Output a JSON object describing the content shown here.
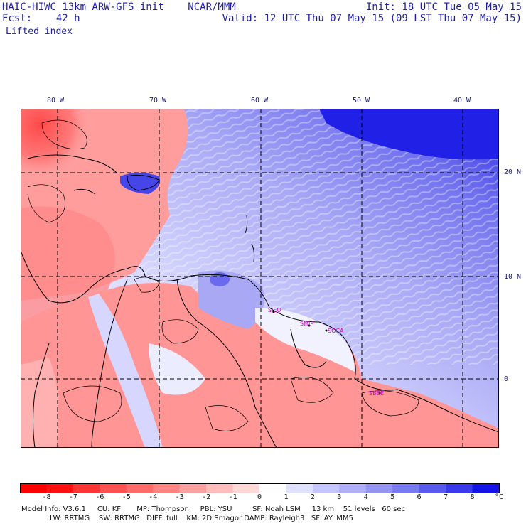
{
  "header": {
    "line1_left": "HAIC-HIWC 13km ARW-GFS init    NCAR/MMM",
    "line1_right": "Init: 18 UTC Tue 05 May 15",
    "line2_left": "Fcst:    42 h",
    "line2_right": "Valid: 12 UTC Thu 07 May 15 (09 LST Thu 07 May 15)",
    "field": "Lifted index"
  },
  "map": {
    "lon_labels": [
      "80 W",
      "70 W",
      "60 W",
      "50 W",
      "40 W"
    ],
    "lat_labels": [
      "20 N",
      "10 N",
      "0"
    ],
    "sites": [
      "SIEU",
      "SMJP",
      "SOCA",
      "SBBE"
    ]
  },
  "colorbar": {
    "ticks": [
      "-8",
      "-7",
      "-6",
      "-5",
      "-4",
      "-3",
      "-2",
      "-1",
      "0",
      "1",
      "2",
      "3",
      "4",
      "5",
      "6",
      "7",
      "8"
    ],
    "unit": "°C",
    "colors": [
      "#ff1010",
      "#ff3535",
      "#ff5252",
      "#ff6a6a",
      "#ff8585",
      "#ffa0a0",
      "#ffbcbc",
      "#ffd8d8",
      "#ffffff",
      "#e0e0ff",
      "#c6c6ff",
      "#aeaefa",
      "#9494f5",
      "#7a7af0",
      "#5a5aec",
      "#3a3ae8",
      "#1414e4"
    ]
  },
  "footer": {
    "line1": "Model Info: V3.6.1     CU: KF       MP: Thompson     PBL: YSU         SF: Noah LSM     13 km    51 levels   60 sec",
    "line2": "LW: RRTMG    SW: RRTMG   DIFF: full    KM: 2D Smagor DAMP: Rayleigh3   SFLAY: MM5"
  }
}
